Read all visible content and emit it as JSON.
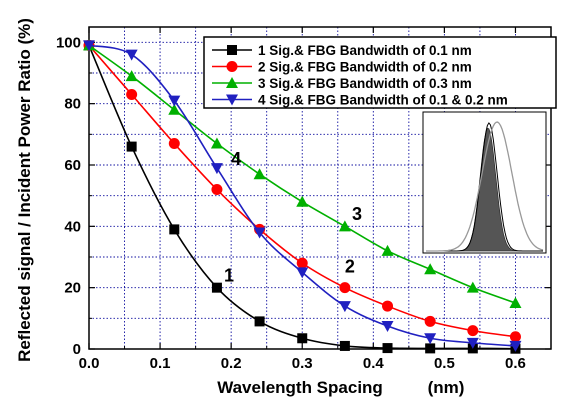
{
  "chart_data": {
    "type": "line",
    "xlabel": "Wavelength Spacing",
    "xlabel_unit": "(nm)",
    "ylabel": "Reflected signal / Incident Power Ratio (%)",
    "xlim": [
      0.0,
      0.65
    ],
    "ylim": [
      0,
      105
    ],
    "xticks": [
      0.0,
      0.1,
      0.2,
      0.3,
      0.4,
      0.5,
      0.6
    ],
    "xtick_labels": [
      "0.0",
      "0.1",
      "0.2",
      "0.3",
      "0.4",
      "0.5",
      "0.6"
    ],
    "yticks": [
      0,
      20,
      40,
      60,
      80,
      100
    ],
    "ytick_labels": [
      "0",
      "20",
      "40",
      "60",
      "80",
      "100"
    ],
    "grid": true,
    "legend_position": "top-right",
    "series": [
      {
        "name": "1 Sig.& FBG Bandwidth of 0.1 nm",
        "label": "1",
        "color": "#000000",
        "marker": "square",
        "x": [
          0.0,
          0.06,
          0.12,
          0.18,
          0.24,
          0.3,
          0.36,
          0.42,
          0.48,
          0.54,
          0.6
        ],
        "y": [
          99,
          66,
          39,
          20,
          9,
          3.5,
          1,
          0.3,
          0.2,
          0.2,
          0.1
        ]
      },
      {
        "name": "2 Sig.& FBG Bandwidth of 0.2 nm",
        "label": "2",
        "color": "#ff0000",
        "marker": "circle",
        "x": [
          0.0,
          0.06,
          0.12,
          0.18,
          0.24,
          0.3,
          0.36,
          0.42,
          0.48,
          0.54,
          0.6
        ],
        "y": [
          99,
          83,
          67,
          52,
          39,
          28,
          20,
          14,
          9,
          6,
          4
        ]
      },
      {
        "name": "3 Sig.& FBG Bandwidth of 0.3 nm",
        "label": "3",
        "color": "#00b000",
        "marker": "triangle-up",
        "x": [
          0.0,
          0.06,
          0.12,
          0.18,
          0.24,
          0.3,
          0.36,
          0.42,
          0.48,
          0.54,
          0.6
        ],
        "y": [
          99,
          89,
          78,
          67,
          57,
          48,
          40,
          32,
          26,
          20,
          15
        ]
      },
      {
        "name": "4 Sig.& FBG Bandwidth of 0.1 & 0.2 nm",
        "label": "4",
        "color": "#2020c0",
        "marker": "triangle-down",
        "x": [
          0.0,
          0.06,
          0.12,
          0.18,
          0.24,
          0.3,
          0.36,
          0.42,
          0.48,
          0.54,
          0.6
        ],
        "y": [
          99,
          96,
          81,
          59,
          38,
          25,
          14,
          7.5,
          3.5,
          2,
          1
        ]
      }
    ],
    "inset": {
      "description_colors": {
        "filled": "#555555",
        "outline_dark": "#000000",
        "outline_light": "#999999"
      }
    }
  }
}
